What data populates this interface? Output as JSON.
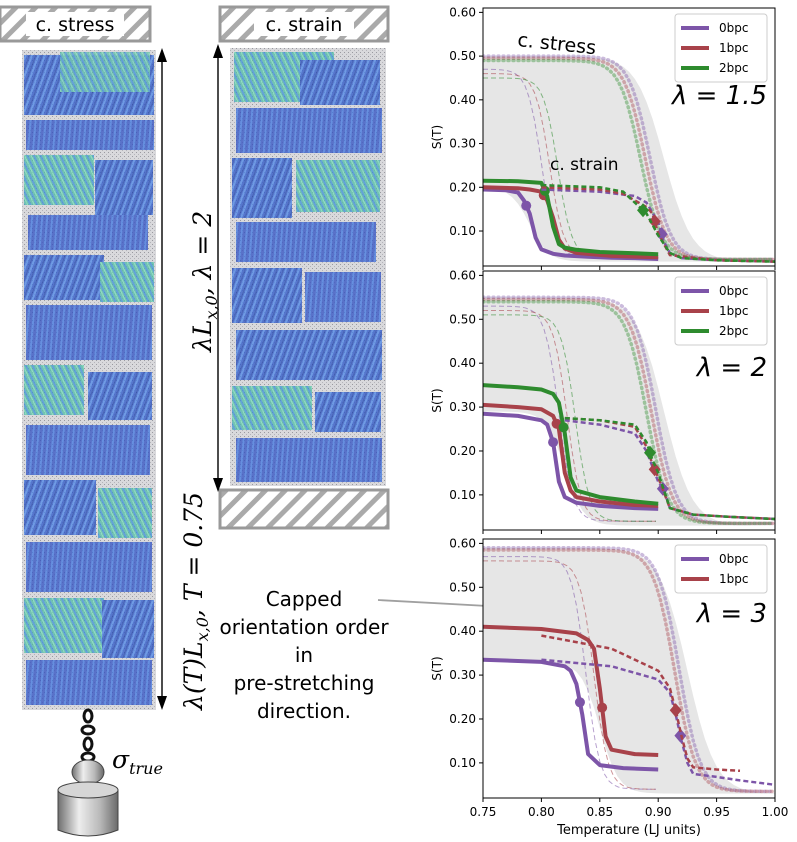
{
  "left_panel": {
    "stress_label": "c. stress",
    "strain_label": "c. strain",
    "stress_length_label": "λ(T)L",
    "stress_length_sub": "x,0",
    "stress_T_label": ",  T = 0.75",
    "strain_length_label": "λL",
    "strain_length_sub": "x,0",
    "strain_lambda_label": ", λ = 2",
    "sigma_label": "σ",
    "sigma_sub": "true"
  },
  "annotation": {
    "lines": [
      "Capped",
      "orientation order",
      "in",
      "pre-stretching",
      "direction."
    ]
  },
  "colors": {
    "bpc0": "#7d55a8",
    "bpc1": "#a8424a",
    "bpc2": "#2e8b2e",
    "gray_fill": "#e6e6e6",
    "hatch": "#aaaaaa"
  },
  "chart_data": [
    {
      "type": "line",
      "ylabel": "S(T)",
      "xlim": [
        0.75,
        1.0
      ],
      "ylim": [
        0.02,
        0.61
      ],
      "yticks": [
        0.1,
        0.2,
        0.3,
        0.4,
        0.5,
        0.6
      ],
      "ytick_labels": [
        "0.10",
        "0.20",
        "0.30",
        "0.40",
        "0.50",
        "0.60"
      ],
      "lambda_label": "λ = 1.5",
      "text_annotations": [
        "c. stress",
        "c. strain"
      ],
      "legend": [
        "0bpc",
        "1bpc",
        "2bpc"
      ],
      "series": [
        {
          "name": "0bpc",
          "mode": "strain",
          "x": [
            0.75,
            0.77,
            0.78,
            0.785,
            0.79,
            0.795,
            0.8,
            0.81,
            0.82,
            0.84,
            0.86,
            0.88,
            0.9
          ],
          "y": [
            0.195,
            0.193,
            0.188,
            0.17,
            0.14,
            0.085,
            0.058,
            0.048,
            0.044,
            0.041,
            0.039,
            0.038,
            0.036
          ],
          "marker_x": 0.787
        },
        {
          "name": "1bpc",
          "mode": "strain",
          "x": [
            0.75,
            0.78,
            0.79,
            0.8,
            0.805,
            0.81,
            0.815,
            0.82,
            0.83,
            0.86,
            0.9
          ],
          "y": [
            0.2,
            0.198,
            0.195,
            0.19,
            0.17,
            0.13,
            0.08,
            0.06,
            0.05,
            0.043,
            0.04
          ],
          "marker_x": 0.802
        },
        {
          "name": "2bpc",
          "mode": "strain",
          "x": [
            0.75,
            0.78,
            0.8,
            0.805,
            0.81,
            0.815,
            0.82,
            0.83,
            0.85,
            0.88,
            0.9
          ],
          "y": [
            0.215,
            0.214,
            0.21,
            0.18,
            0.11,
            0.07,
            0.062,
            0.057,
            0.052,
            0.049,
            0.047
          ],
          "marker_x": 0.803
        },
        {
          "name": "0bpc",
          "mode": "stress",
          "x": [
            0.8,
            0.85,
            0.88,
            0.89,
            0.9,
            0.905,
            0.91,
            0.92,
            0.95,
            1.0
          ],
          "y": [
            0.195,
            0.19,
            0.18,
            0.165,
            0.12,
            0.075,
            0.05,
            0.038,
            0.033,
            0.03
          ],
          "marker_x": 0.903
        },
        {
          "name": "1bpc",
          "mode": "stress",
          "x": [
            0.8,
            0.85,
            0.87,
            0.88,
            0.89,
            0.895,
            0.9,
            0.91,
            0.95,
            1.0
          ],
          "y": [
            0.2,
            0.195,
            0.185,
            0.17,
            0.155,
            0.14,
            0.095,
            0.045,
            0.033,
            0.03
          ],
          "marker_x": 0.897
        },
        {
          "name": "2bpc",
          "mode": "stress",
          "x": [
            0.8,
            0.85,
            0.87,
            0.88,
            0.89,
            0.9,
            0.91,
            0.92,
            0.95,
            1.0
          ],
          "y": [
            0.205,
            0.2,
            0.19,
            0.165,
            0.14,
            0.09,
            0.05,
            0.038,
            0.033,
            0.03
          ],
          "marker_x": 0.887
        }
      ]
    },
    {
      "type": "line",
      "ylabel": "S(T)",
      "xlim": [
        0.75,
        1.0
      ],
      "ylim": [
        0.02,
        0.61
      ],
      "yticks": [
        0.1,
        0.2,
        0.3,
        0.4,
        0.5,
        0.6
      ],
      "ytick_labels": [
        "0.10",
        "0.20",
        "0.30",
        "0.40",
        "0.50",
        "0.60"
      ],
      "lambda_label": "λ = 2",
      "legend": [
        "0bpc",
        "1bpc",
        "2bpc"
      ],
      "series": [
        {
          "name": "0bpc",
          "mode": "strain",
          "x": [
            0.75,
            0.78,
            0.8,
            0.805,
            0.81,
            0.815,
            0.82,
            0.83,
            0.85,
            0.88,
            0.9
          ],
          "y": [
            0.285,
            0.28,
            0.27,
            0.26,
            0.22,
            0.13,
            0.095,
            0.082,
            0.075,
            0.07,
            0.068
          ],
          "marker_x": 0.81
        },
        {
          "name": "1bpc",
          "mode": "strain",
          "x": [
            0.75,
            0.78,
            0.8,
            0.81,
            0.815,
            0.82,
            0.825,
            0.83,
            0.85,
            0.88,
            0.9
          ],
          "y": [
            0.305,
            0.3,
            0.295,
            0.28,
            0.25,
            0.15,
            0.11,
            0.095,
            0.085,
            0.077,
            0.075
          ],
          "marker_x": 0.813
        },
        {
          "name": "2bpc",
          "mode": "strain",
          "x": [
            0.75,
            0.78,
            0.8,
            0.81,
            0.815,
            0.82,
            0.825,
            0.83,
            0.85,
            0.88,
            0.9
          ],
          "y": [
            0.35,
            0.345,
            0.34,
            0.33,
            0.31,
            0.24,
            0.14,
            0.11,
            0.095,
            0.085,
            0.08
          ],
          "marker_x": 0.819
        },
        {
          "name": "0bpc",
          "mode": "stress",
          "x": [
            0.82,
            0.85,
            0.88,
            0.89,
            0.9,
            0.905,
            0.91,
            0.93,
            0.96,
            1.0
          ],
          "y": [
            0.27,
            0.26,
            0.24,
            0.2,
            0.13,
            0.11,
            0.07,
            0.055,
            0.05,
            0.045
          ],
          "marker_x": 0.904
        },
        {
          "name": "1bpc",
          "mode": "stress",
          "x": [
            0.82,
            0.85,
            0.88,
            0.89,
            0.895,
            0.9,
            0.91,
            0.93,
            0.96,
            1.0
          ],
          "y": [
            0.275,
            0.27,
            0.255,
            0.21,
            0.17,
            0.14,
            0.07,
            0.055,
            0.05,
            0.045
          ],
          "marker_x": 0.897
        },
        {
          "name": "2bpc",
          "mode": "stress",
          "x": [
            0.82,
            0.85,
            0.88,
            0.89,
            0.895,
            0.9,
            0.91,
            0.93,
            0.96,
            1.0
          ],
          "y": [
            0.275,
            0.27,
            0.26,
            0.22,
            0.18,
            0.15,
            0.07,
            0.055,
            0.05,
            0.045
          ],
          "marker_x": 0.893
        }
      ]
    },
    {
      "type": "line",
      "ylabel": "S(T)",
      "xlabel": "Temperature (LJ units)",
      "xlim": [
        0.75,
        1.0
      ],
      "ylim": [
        0.02,
        0.61
      ],
      "xticks": [
        0.75,
        0.8,
        0.85,
        0.9,
        0.95,
        1.0
      ],
      "xtick_labels": [
        "0.75",
        "0.80",
        "0.85",
        "0.90",
        "0.95",
        "1.00"
      ],
      "yticks": [
        0.1,
        0.2,
        0.3,
        0.4,
        0.5,
        0.6
      ],
      "ytick_labels": [
        "0.10",
        "0.20",
        "0.30",
        "0.40",
        "0.50",
        "0.60"
      ],
      "lambda_label": "λ = 3",
      "legend": [
        "0bpc",
        "1bpc"
      ],
      "series": [
        {
          "name": "0bpc",
          "mode": "strain",
          "x": [
            0.75,
            0.8,
            0.82,
            0.825,
            0.83,
            0.835,
            0.84,
            0.85,
            0.87,
            0.9
          ],
          "y": [
            0.335,
            0.33,
            0.32,
            0.31,
            0.28,
            0.21,
            0.12,
            0.095,
            0.088,
            0.085
          ],
          "marker_x": 0.833
        },
        {
          "name": "1bpc",
          "mode": "strain",
          "x": [
            0.75,
            0.8,
            0.83,
            0.84,
            0.845,
            0.85,
            0.855,
            0.86,
            0.88,
            0.9
          ],
          "y": [
            0.41,
            0.405,
            0.395,
            0.38,
            0.36,
            0.27,
            0.16,
            0.13,
            0.12,
            0.118
          ],
          "marker_x": 0.852
        },
        {
          "name": "0bpc",
          "mode": "stress",
          "x": [
            0.8,
            0.86,
            0.9,
            0.91,
            0.915,
            0.92,
            0.925,
            0.93,
            0.95,
            0.97,
            1.0
          ],
          "y": [
            0.335,
            0.32,
            0.29,
            0.26,
            0.21,
            0.15,
            0.1,
            0.075,
            0.068,
            0.06,
            0.05
          ],
          "marker_x": 0.919
        },
        {
          "name": "1bpc",
          "mode": "stress",
          "x": [
            0.8,
            0.86,
            0.9,
            0.91,
            0.915,
            0.92,
            0.925,
            0.93,
            0.95,
            0.97
          ],
          "y": [
            0.39,
            0.36,
            0.31,
            0.27,
            0.22,
            0.16,
            0.11,
            0.09,
            0.085,
            0.082
          ],
          "marker_x": 0.915
        }
      ]
    }
  ]
}
